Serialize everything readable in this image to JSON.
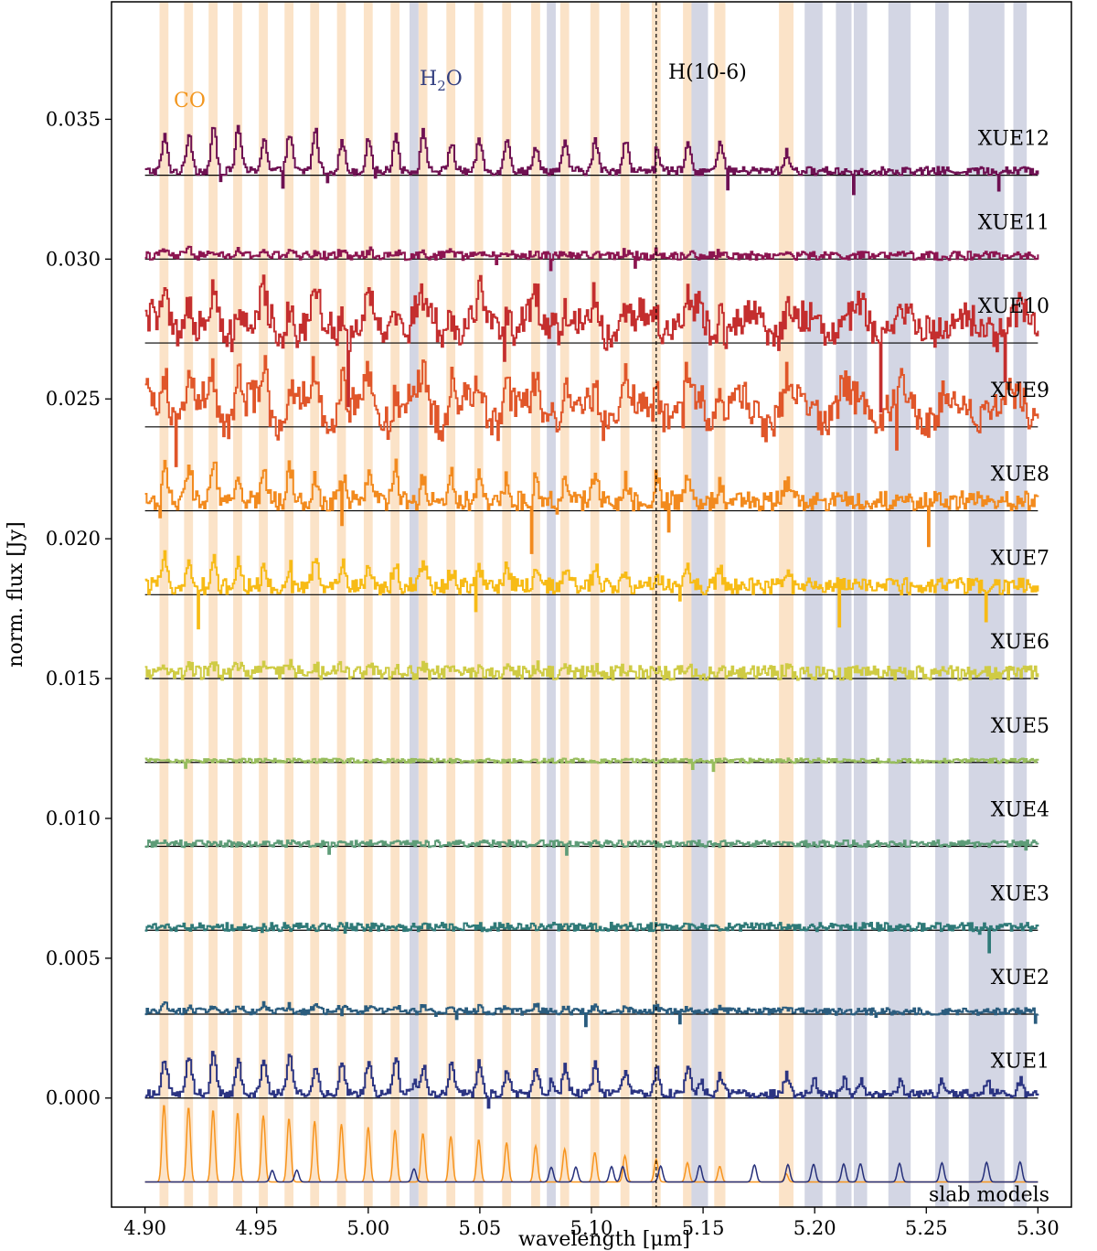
{
  "chart_data": {
    "type": "line",
    "xlabel": "wavelength [μm]",
    "ylabel": "norm. flux [Jy]",
    "xlim": [
      4.885,
      5.315
    ],
    "ylim": [
      -0.0039,
      0.0392
    ],
    "xticks": [
      "4.90",
      "4.95",
      "5.00",
      "5.05",
      "5.10",
      "5.15",
      "5.20",
      "5.25",
      "5.30"
    ],
    "yticks": [
      "0.000",
      "0.005",
      "0.010",
      "0.015",
      "0.020",
      "0.025",
      "0.030",
      "0.035"
    ],
    "annotations": {
      "co": "CO",
      "h2o_main": "H",
      "h2o_sub": "2",
      "h2o_end": "O",
      "hline": "H(10-6)",
      "hline_x": 5.129
    },
    "colors": {
      "co_band": "#fbe3c8",
      "h2o_band": "#d3d6e4",
      "co_text": "#f2961e",
      "h2o_text": "#333f80",
      "co_model": "#f7941d",
      "h2o_model": "#252f7a"
    },
    "co_bands": [
      [
        4.9065,
        4.9105
      ],
      [
        4.9175,
        4.9215
      ],
      [
        4.9285,
        4.9325
      ],
      [
        4.9395,
        4.9435
      ],
      [
        4.951,
        4.955
      ],
      [
        4.9625,
        4.9665
      ],
      [
        4.974,
        4.978
      ],
      [
        4.986,
        4.99
      ],
      [
        4.998,
        5.002
      ],
      [
        5.01,
        5.014
      ],
      [
        5.0225,
        5.0265
      ],
      [
        5.035,
        5.039
      ],
      [
        5.0475,
        5.0515
      ],
      [
        5.06,
        5.064
      ],
      [
        5.073,
        5.077
      ],
      [
        5.086,
        5.09
      ],
      [
        5.0995,
        5.1035
      ],
      [
        5.113,
        5.117
      ],
      [
        5.127,
        5.131
      ],
      [
        5.141,
        5.145
      ],
      [
        5.155,
        5.16
      ],
      [
        5.184,
        5.1905
      ]
    ],
    "h2o_bands": [
      [
        5.0185,
        5.0225
      ],
      [
        5.08,
        5.084
      ],
      [
        5.1448,
        5.1522
      ],
      [
        5.1955,
        5.2035
      ],
      [
        5.2095,
        5.2165
      ],
      [
        5.2175,
        5.2235
      ],
      [
        5.233,
        5.243
      ],
      [
        5.254,
        5.26
      ],
      [
        5.269,
        5.285
      ],
      [
        5.289,
        5.295
      ]
    ],
    "series": [
      {
        "name": "XUE12",
        "offset": 0.033,
        "color": "#6e1052",
        "amp": 0.00155,
        "noise": 0.00015,
        "style": "co"
      },
      {
        "name": "XUE11",
        "offset": 0.03,
        "color": "#8c1550",
        "amp": 0.0002,
        "noise": 0.00015,
        "style": "noise"
      },
      {
        "name": "XUE10",
        "offset": 0.027,
        "color": "#c42e2e",
        "amp": 0.0012,
        "noise": 0.0006,
        "style": "rough"
      },
      {
        "name": "XUE9",
        "offset": 0.024,
        "color": "#e0562a",
        "amp": 0.0015,
        "noise": 0.0006,
        "style": "rough"
      },
      {
        "name": "XUE8",
        "offset": 0.021,
        "color": "#f28a1e",
        "amp": 0.0013,
        "noise": 0.00035,
        "style": "co"
      },
      {
        "name": "XUE7",
        "offset": 0.018,
        "color": "#f7bb16",
        "amp": 0.00095,
        "noise": 0.0003,
        "style": "co"
      },
      {
        "name": "XUE6",
        "offset": 0.015,
        "color": "#cfcb44",
        "amp": 0.0003,
        "noise": 0.00025,
        "style": "noise"
      },
      {
        "name": "XUE5",
        "offset": 0.012,
        "color": "#98bd5e",
        "amp": 0.0,
        "noise": 8e-05,
        "style": "noise"
      },
      {
        "name": "XUE4",
        "offset": 0.009,
        "color": "#5e9c78",
        "amp": 0.0,
        "noise": 0.00012,
        "style": "noise"
      },
      {
        "name": "XUE3",
        "offset": 0.006,
        "color": "#2f7a78",
        "amp": 0.0,
        "noise": 0.00015,
        "style": "noise"
      },
      {
        "name": "XUE2",
        "offset": 0.003,
        "color": "#2a5c7e",
        "amp": 0.00025,
        "noise": 0.00012,
        "style": "noise"
      },
      {
        "name": "XUE1",
        "offset": 0.0,
        "color": "#2b3482",
        "amp": 0.0014,
        "noise": 0.00015,
        "style": "co"
      }
    ],
    "models_label": "slab models",
    "models_offset": -0.003
  }
}
